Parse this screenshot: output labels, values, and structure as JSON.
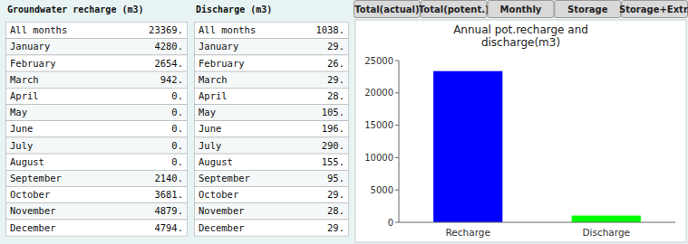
{
  "tabs": [
    "Total(actual)",
    "Total(potent.)",
    "Monthly",
    "Storage",
    "Storage+Extr."
  ],
  "chart_data": [
    {
      "type": "bar",
      "title": "Annual pot.recharge and\ndischarge(m3)",
      "categories": [
        "Recharge",
        "Discharge"
      ],
      "values": [
        23369,
        1038
      ],
      "colors": [
        "#0000ff",
        "#00ff00"
      ],
      "ylim": [
        0,
        25000
      ],
      "yticks": [
        0,
        5000,
        10000,
        15000,
        20000,
        25000
      ],
      "grid": false
    },
    {
      "type": "table",
      "title": "Groundwater recharge (m3)",
      "categories": [
        "All months",
        "January",
        "February",
        "March",
        "April",
        "May",
        "June",
        "July",
        "August",
        "September",
        "October",
        "November",
        "December"
      ],
      "values": [
        23369,
        4280,
        2654,
        942,
        0,
        0,
        0,
        0,
        0,
        2140,
        3681,
        4879,
        4794
      ],
      "value_labels": [
        "23369.",
        "4280.",
        "2654.",
        "942.",
        "0.",
        "0.",
        "0.",
        "0.",
        "0.",
        "2140.",
        "3681.",
        "4879.",
        "4794."
      ]
    },
    {
      "type": "table",
      "title": "Discharge (m3)",
      "categories": [
        "All months",
        "January",
        "February",
        "March",
        "April",
        "May",
        "June",
        "July",
        "August",
        "September",
        "October",
        "November",
        "December"
      ],
      "values": [
        1038,
        29,
        26,
        29,
        28,
        105,
        196,
        290,
        155,
        95,
        29,
        28,
        29
      ],
      "value_labels": [
        "1038.",
        "29.",
        "26.",
        "29.",
        "28.",
        "105.",
        "196.",
        "290.",
        "155.",
        "95.",
        "29.",
        "28.",
        "29."
      ]
    }
  ]
}
